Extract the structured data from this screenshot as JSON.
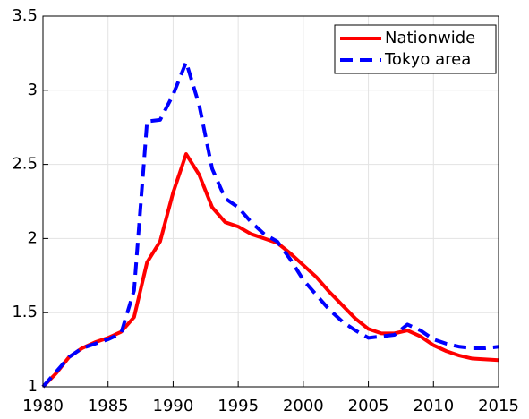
{
  "chart_data": {
    "type": "line",
    "x": [
      1980,
      1981,
      1982,
      1983,
      1984,
      1985,
      1986,
      1987,
      1988,
      1989,
      1990,
      1991,
      1992,
      1993,
      1994,
      1995,
      1996,
      1997,
      1998,
      1999,
      2000,
      2001,
      2002,
      2003,
      2004,
      2005,
      2006,
      2007,
      2008,
      2009,
      2010,
      2011,
      2012,
      2013,
      2014,
      2015
    ],
    "series": [
      {
        "name": "Nationwide",
        "color": "#ff0000",
        "dash": false,
        "values": [
          1.0,
          1.09,
          1.2,
          1.26,
          1.3,
          1.33,
          1.37,
          1.47,
          1.84,
          1.98,
          2.31,
          2.57,
          2.43,
          2.21,
          2.11,
          2.08,
          2.03,
          2.0,
          1.97,
          1.9,
          1.82,
          1.74,
          1.64,
          1.55,
          1.46,
          1.39,
          1.36,
          1.36,
          1.38,
          1.34,
          1.28,
          1.24,
          1.21,
          1.19,
          1.185,
          1.18
        ]
      },
      {
        "name": "Tokyo area",
        "color": "#0000ff",
        "dash": true,
        "values": [
          1.0,
          1.1,
          1.2,
          1.26,
          1.29,
          1.32,
          1.36,
          1.65,
          2.79,
          2.8,
          2.97,
          3.19,
          2.9,
          2.47,
          2.27,
          2.21,
          2.11,
          2.03,
          1.98,
          1.86,
          1.72,
          1.62,
          1.52,
          1.44,
          1.38,
          1.33,
          1.34,
          1.35,
          1.42,
          1.38,
          1.32,
          1.29,
          1.27,
          1.26,
          1.26,
          1.27
        ]
      }
    ],
    "xlim": [
      1980,
      2015
    ],
    "xticks": [
      1980,
      1985,
      1990,
      1995,
      2000,
      2005,
      2010,
      2015
    ],
    "ylim": [
      1,
      3.5
    ],
    "yticks": [
      1,
      1.5,
      2,
      2.5,
      3,
      3.5
    ],
    "grid": true,
    "legend": "top-right"
  }
}
